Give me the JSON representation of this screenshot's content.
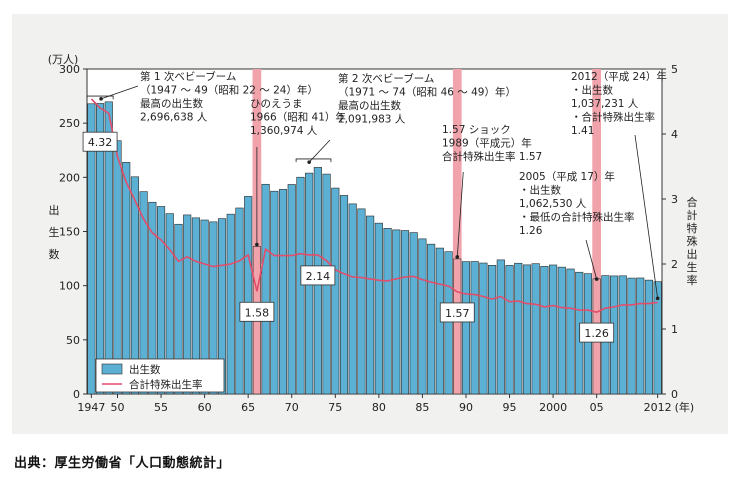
{
  "chart_data": {
    "type": "bar",
    "x": [
      1947,
      1948,
      1949,
      1950,
      1951,
      1952,
      1953,
      1954,
      1955,
      1956,
      1957,
      1958,
      1959,
      1960,
      1961,
      1962,
      1963,
      1964,
      1965,
      1966,
      1967,
      1968,
      1969,
      1970,
      1971,
      1972,
      1973,
      1974,
      1975,
      1976,
      1977,
      1978,
      1979,
      1980,
      1981,
      1982,
      1983,
      1984,
      1985,
      1986,
      1987,
      1988,
      1989,
      1990,
      1991,
      1992,
      1993,
      1994,
      1995,
      1996,
      1997,
      1998,
      1999,
      2000,
      2001,
      2002,
      2003,
      2004,
      2005,
      2006,
      2007,
      2008,
      2009,
      2010,
      2011,
      2012
    ],
    "series": [
      {
        "name": "出生数",
        "axis": "left",
        "color": "#5bb0d4",
        "values": [
          267.9,
          268.2,
          269.7,
          233.8,
          213.8,
          200.5,
          186.8,
          177.0,
          173.1,
          166.5,
          156.7,
          165.3,
          162.6,
          160.6,
          158.9,
          161.9,
          166.0,
          171.7,
          182.4,
          136.1,
          193.6,
          187.2,
          188.9,
          193.4,
          200.1,
          203.9,
          209.2,
          203.0,
          190.1,
          183.3,
          175.5,
          170.9,
          164.3,
          157.7,
          152.9,
          151.5,
          150.9,
          149.0,
          143.2,
          138.3,
          134.7,
          131.4,
          124.7,
          122.2,
          122.3,
          120.9,
          118.8,
          123.8,
          118.7,
          120.7,
          119.2,
          120.3,
          117.8,
          119.1,
          117.1,
          115.4,
          112.4,
          111.1,
          106.3,
          109.3,
          109.0,
          109.1,
          107.0,
          107.1,
          105.1,
          103.7
        ]
      },
      {
        "name": "合計特殊出生率",
        "axis": "right",
        "color": "#e34d6a",
        "values": [
          4.54,
          4.4,
          4.32,
          3.65,
          3.26,
          2.98,
          2.69,
          2.48,
          2.37,
          2.22,
          2.04,
          2.11,
          2.04,
          2.0,
          1.96,
          1.98,
          2.0,
          2.05,
          2.14,
          1.58,
          2.23,
          2.13,
          2.13,
          2.13,
          2.16,
          2.14,
          2.14,
          2.05,
          1.91,
          1.85,
          1.8,
          1.79,
          1.77,
          1.75,
          1.74,
          1.77,
          1.8,
          1.81,
          1.76,
          1.72,
          1.69,
          1.66,
          1.57,
          1.54,
          1.53,
          1.5,
          1.46,
          1.5,
          1.42,
          1.43,
          1.39,
          1.38,
          1.34,
          1.36,
          1.33,
          1.32,
          1.29,
          1.29,
          1.26,
          1.32,
          1.34,
          1.37,
          1.37,
          1.39,
          1.39,
          1.41
        ]
      }
    ],
    "highlight_years": [
      1966,
      1989,
      2005
    ],
    "highlight_color": "#f0a3ab",
    "value_boxes": [
      {
        "year": 1949,
        "label": "4.32"
      },
      {
        "year": 1966,
        "label": "1.58"
      },
      {
        "year": 1973,
        "label": "2.14"
      },
      {
        "year": 1989,
        "label": "1.57"
      },
      {
        "year": 2005,
        "label": "1.26"
      }
    ],
    "ylabel_left": "出生数",
    "ylabel_right": "合計特殊出生率",
    "left_unit": "(万人)",
    "x_unit": "(年)",
    "ylim_left": [
      0,
      300
    ],
    "ylim_right": [
      0,
      5
    ],
    "yticks_left": [
      "0",
      "50",
      "100",
      "150",
      "200",
      "250",
      "300"
    ],
    "yticks_right": [
      "0",
      "1",
      "2",
      "3",
      "4",
      "5"
    ],
    "xticks": [
      {
        "year": 1947,
        "label": "1947"
      },
      {
        "year": 1950,
        "label": "50"
      },
      {
        "year": 1955,
        "label": "55"
      },
      {
        "year": 1960,
        "label": "60"
      },
      {
        "year": 1965,
        "label": "65"
      },
      {
        "year": 1970,
        "label": "70"
      },
      {
        "year": 1975,
        "label": "75"
      },
      {
        "year": 1980,
        "label": "80"
      },
      {
        "year": 1985,
        "label": "85"
      },
      {
        "year": 1990,
        "label": "90"
      },
      {
        "year": 1995,
        "label": "95"
      },
      {
        "year": 2000,
        "label": "2000"
      },
      {
        "year": 2005,
        "label": "05"
      },
      {
        "year": 2012,
        "label": "2012"
      }
    ],
    "legend": {
      "position": "bottom-left",
      "bar_label": "出生数",
      "line_label": "合計特殊出生率"
    },
    "annotations": [
      {
        "id": "baby1",
        "lines": [
          "第 1 次ベビーブーム",
          "（1947 ～ 49（昭和 22 ～ 24）年）",
          "最高の出生数",
          "2,696,638 人"
        ]
      },
      {
        "id": "hinoe",
        "lines": [
          "ひのえうま",
          "1966（昭和 41）年",
          "1,360,974 人"
        ]
      },
      {
        "id": "baby2",
        "lines": [
          "第 2 次ベビーブーム",
          "（1971 ～ 74（昭和 46 ～ 49）年）",
          "最高の出生数",
          "2,091,983 人"
        ]
      },
      {
        "id": "shock",
        "lines": [
          "1.57 ショック",
          "1989（平成元）年",
          "合計特殊出生率 1.57"
        ]
      },
      {
        "id": "y2005",
        "lines": [
          "2005（平成 17）年",
          "・出生数",
          "1,062,530 人",
          "・最低の合計特殊出生率",
          "1.26"
        ]
      },
      {
        "id": "y2012",
        "lines": [
          "2012（平成 24）年",
          "・出生数",
          "1,037,231 人",
          "・合計特殊出生率",
          "1.41"
        ]
      }
    ]
  },
  "source": "出典：厚生労働省「人口動態統計」"
}
